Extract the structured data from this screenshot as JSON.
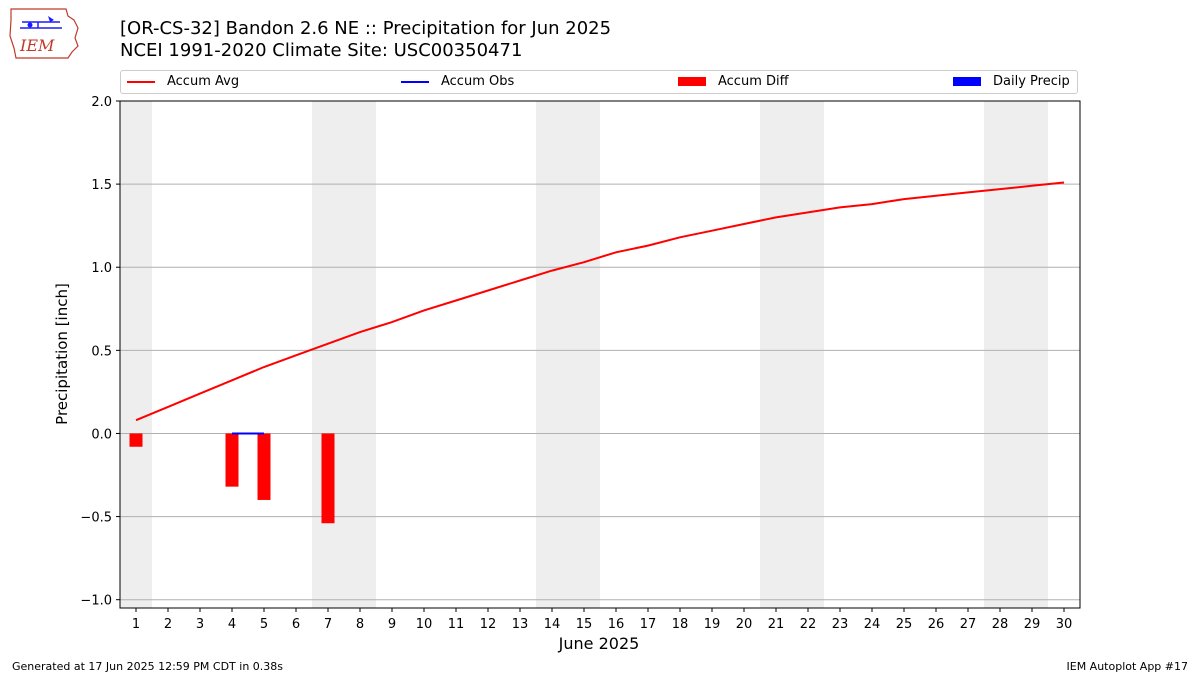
{
  "header": {
    "title_line1": "[OR-CS-32] Bandon 2.6 NE :: Precipitation for Jun 2025",
    "title_line2": "NCEI 1991-2020 Climate Site: USC00350471"
  },
  "logo": {
    "text": "IEM"
  },
  "footer": {
    "left": "Generated at 17 Jun 2025 12:59 PM CDT in 0.38s",
    "right": "IEM Autoplot App #17"
  },
  "colors": {
    "accum_avg": "#ff0000",
    "accum_obs": "#0000ff",
    "accum_diff": "#ff0000",
    "daily_precip": "#0000ff",
    "weekend_shade": "#eeeeee",
    "grid": "#b0b0b0"
  },
  "chart_data": {
    "type": "line",
    "xlabel": "June 2025",
    "ylabel": "Precipitation [inch]",
    "x": [
      1,
      2,
      3,
      4,
      5,
      6,
      7,
      8,
      9,
      10,
      11,
      12,
      13,
      14,
      15,
      16,
      17,
      18,
      19,
      20,
      21,
      22,
      23,
      24,
      25,
      26,
      27,
      28,
      29,
      30
    ],
    "xlim": [
      0.5,
      30.5
    ],
    "ylim": [
      -1.05,
      2.0
    ],
    "yticks": [
      2.0,
      1.5,
      1.0,
      0.5,
      0.0,
      -0.5,
      -1.0
    ],
    "ytick_labels": [
      "2.0",
      "1.5",
      "1.0",
      "0.5",
      "0.0",
      "−0.5",
      "−1.0"
    ],
    "grid": "horizontal",
    "legend": {
      "placement": "top",
      "entries": [
        "Accum Avg",
        "Accum Obs",
        "Accum Diff",
        "Daily Precip"
      ]
    },
    "weekend_spans": [
      [
        0.5,
        1.5
      ],
      [
        6.5,
        8.5
      ],
      [
        13.5,
        15.5
      ],
      [
        20.5,
        22.5
      ],
      [
        27.5,
        29.5
      ]
    ],
    "series": [
      {
        "name": "Accum Avg",
        "kind": "line",
        "x": [
          1,
          2,
          3,
          4,
          5,
          6,
          7,
          8,
          9,
          10,
          11,
          12,
          13,
          14,
          15,
          16,
          17,
          18,
          19,
          20,
          21,
          22,
          23,
          24,
          25,
          26,
          27,
          28,
          29,
          30
        ],
        "values": [
          0.08,
          0.16,
          0.24,
          0.32,
          0.4,
          0.47,
          0.54,
          0.61,
          0.67,
          0.74,
          0.8,
          0.86,
          0.92,
          0.98,
          1.03,
          1.09,
          1.13,
          1.18,
          1.22,
          1.26,
          1.3,
          1.33,
          1.36,
          1.38,
          1.41,
          1.43,
          1.45,
          1.47,
          1.49,
          1.51
        ]
      },
      {
        "name": "Accum Obs",
        "kind": "line",
        "x": [
          4,
          5
        ],
        "values": [
          0.0,
          0.0
        ]
      },
      {
        "name": "Accum Diff",
        "kind": "bar",
        "x": [
          1,
          4,
          5,
          7
        ],
        "values": [
          -0.08,
          -0.32,
          -0.4,
          -0.54
        ]
      },
      {
        "name": "Daily Precip",
        "kind": "bar",
        "x": [],
        "values": []
      }
    ]
  }
}
